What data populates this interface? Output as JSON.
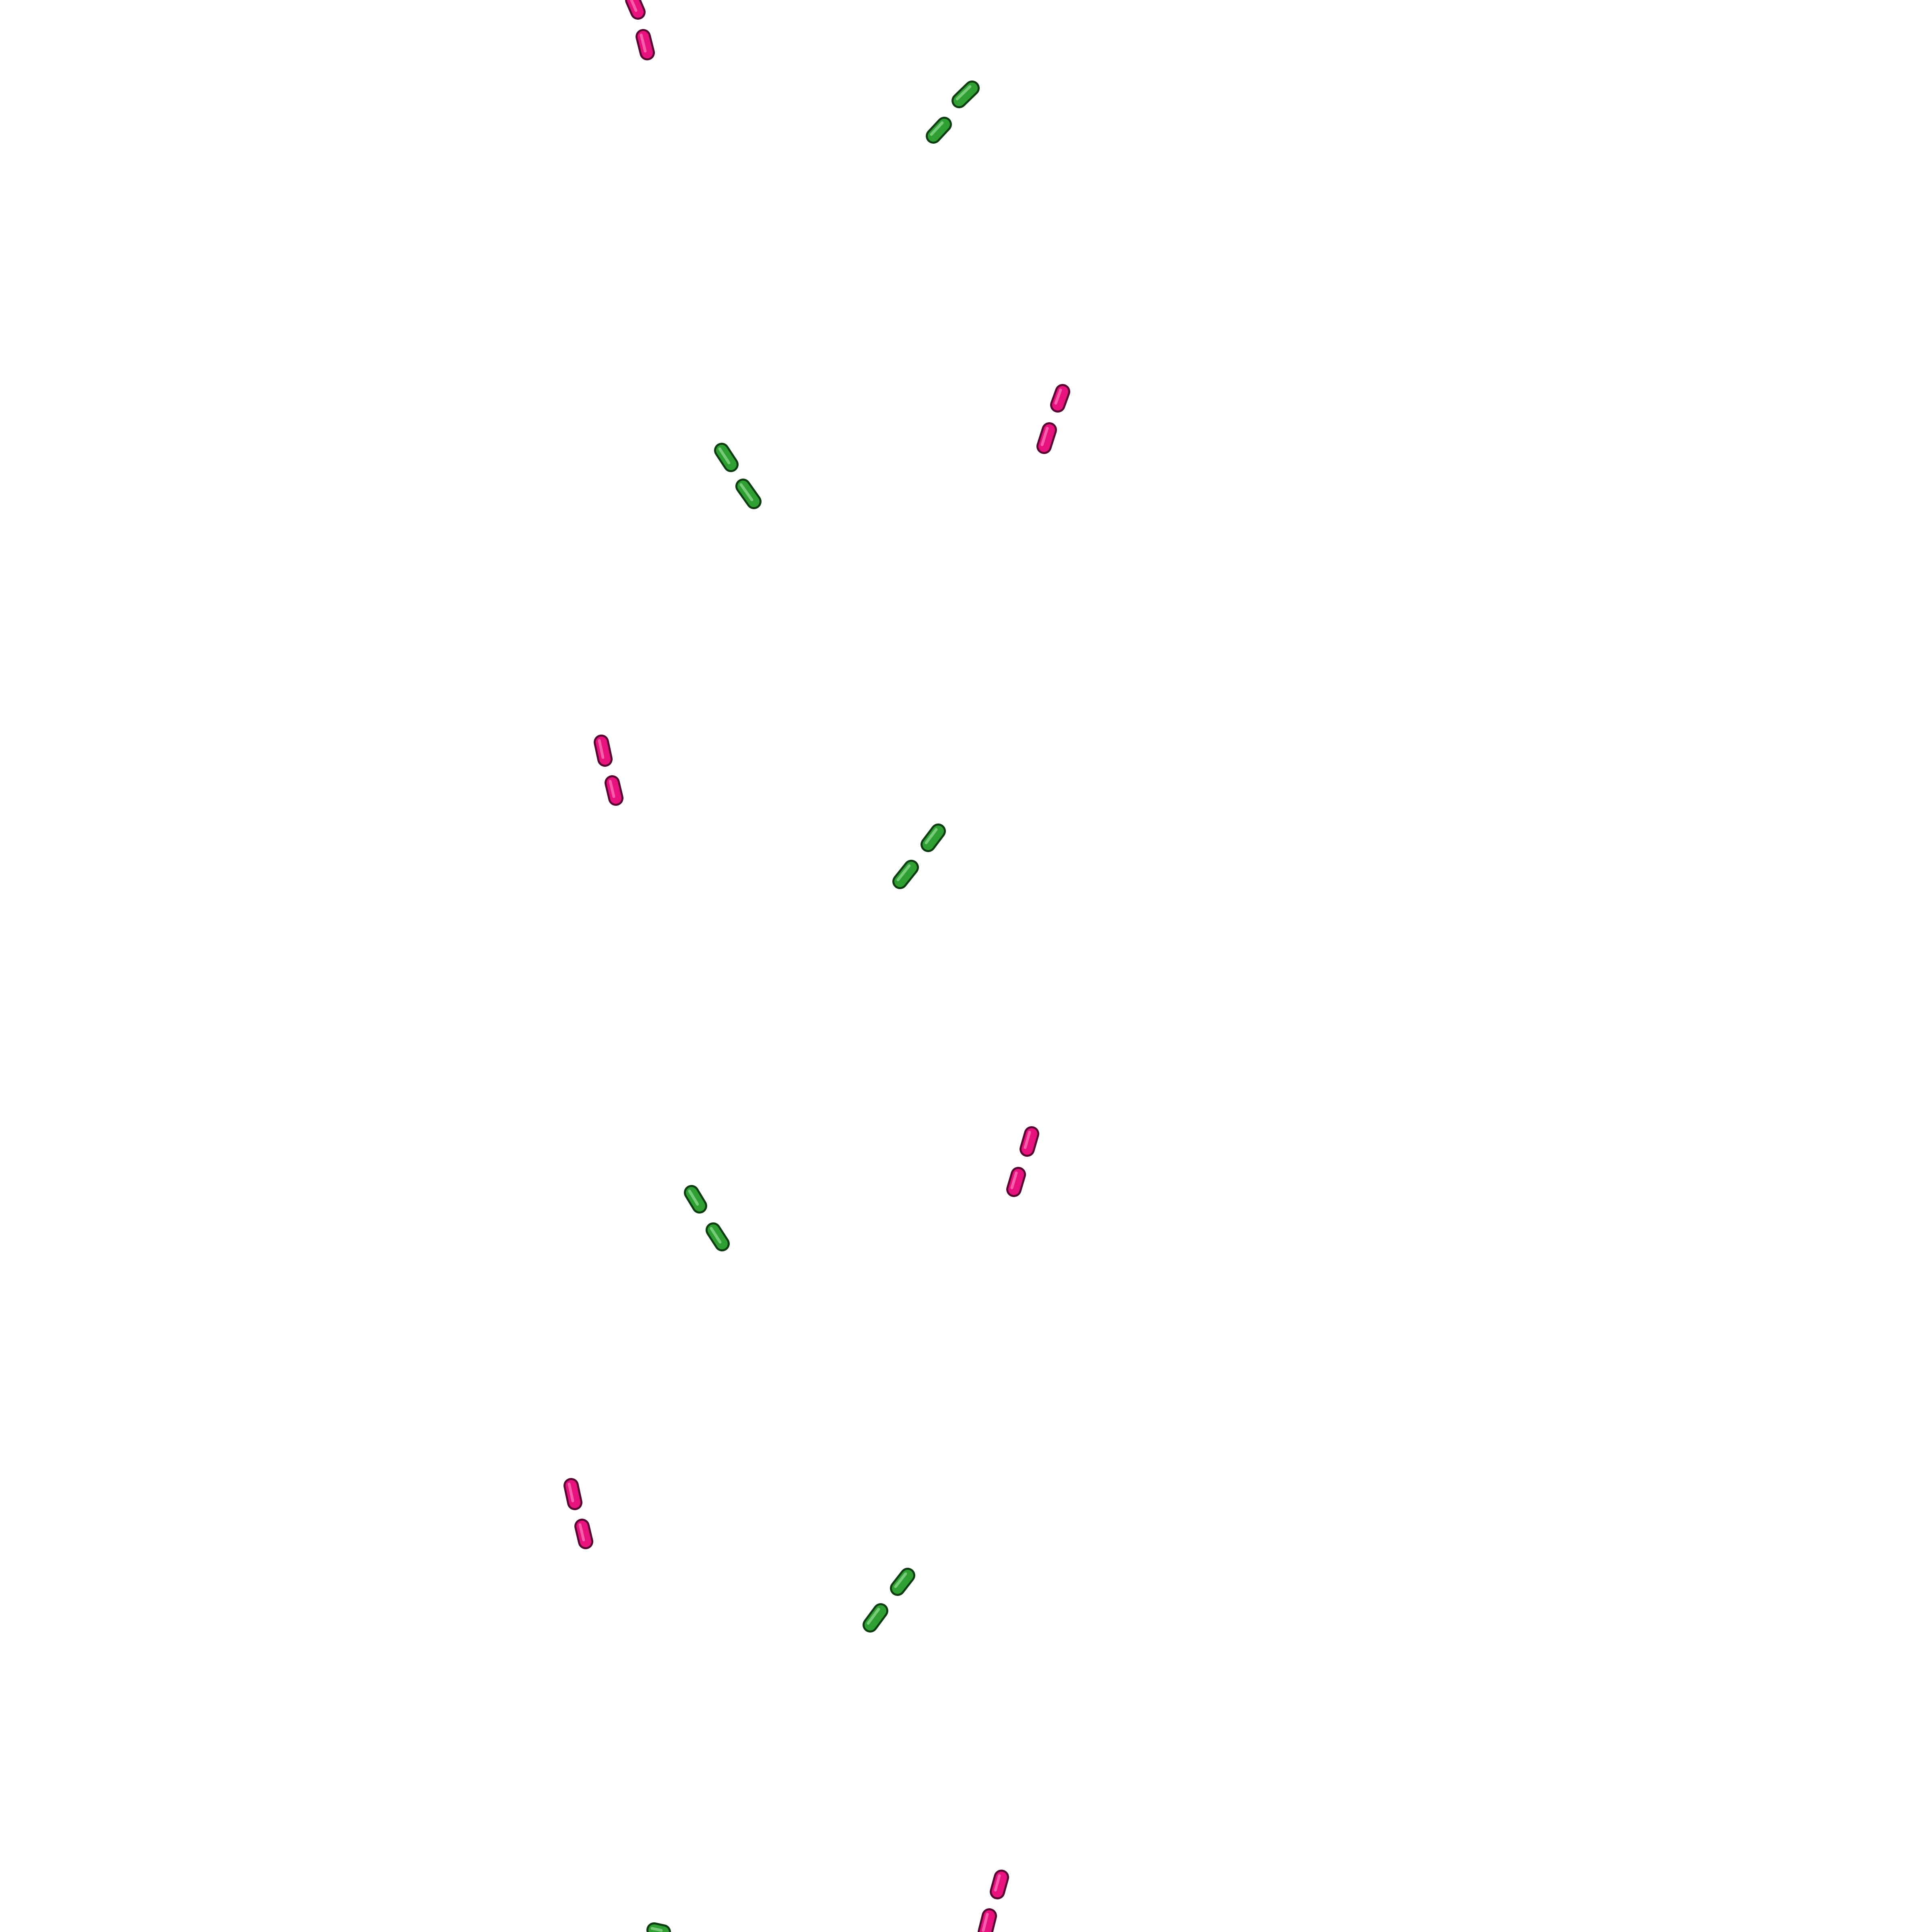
{
  "scene": {
    "background": "#ffffff",
    "colors": {
      "magenta": {
        "fill": "#e8127e",
        "edge": "#5a0633",
        "highlight": "#ff86c2"
      },
      "green": {
        "fill": "#2f9e33",
        "edge": "#0f3d12",
        "highlight": "#9be39d"
      }
    },
    "dash_pairs": [
      {
        "id": "pair-magenta-1",
        "color": "magenta"
      },
      {
        "id": "pair-green-1",
        "color": "green"
      },
      {
        "id": "pair-magenta-2",
        "color": "magenta"
      },
      {
        "id": "pair-green-2",
        "color": "green"
      },
      {
        "id": "pair-magenta-3",
        "color": "magenta"
      },
      {
        "id": "pair-green-3",
        "color": "green"
      },
      {
        "id": "pair-magenta-4",
        "color": "magenta"
      },
      {
        "id": "pair-green-4",
        "color": "green"
      },
      {
        "id": "pair-magenta-5",
        "color": "magenta"
      },
      {
        "id": "pair-green-5",
        "color": "green"
      },
      {
        "id": "pair-magenta-6",
        "color": "magenta"
      },
      {
        "id": "pair-green-6",
        "color": "green"
      },
      {
        "id": "pair-magenta-7",
        "color": "magenta"
      }
    ]
  }
}
